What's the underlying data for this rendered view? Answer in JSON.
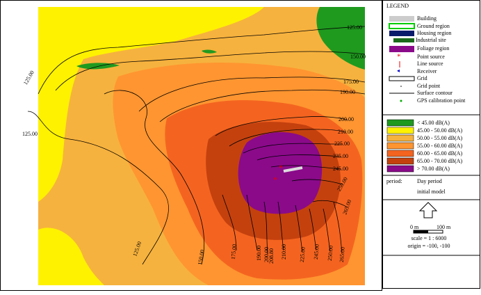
{
  "legend": {
    "title": "LEGEND",
    "items": [
      "Building",
      "Ground region",
      "Housing region",
      "Industrial site",
      "Foliage region",
      "Point source",
      "Line source",
      "Receiver",
      "Grid",
      "Grid point",
      "Surface contour",
      "GPS calibration point"
    ]
  },
  "noise_levels": [
    {
      "label": "< 45.00 dB(A)",
      "color": "#1f9a1f"
    },
    {
      "label": "45.00 - 50.00 dB(A)",
      "color": "#fff200"
    },
    {
      "label": "50.00 - 55.00 dB(A)",
      "color": "#f6b23e"
    },
    {
      "label": "55.00 - 60.00 dB(A)",
      "color": "#ff9530"
    },
    {
      "label": "60.00 - 65.00 dB(A)",
      "color": "#f46420"
    },
    {
      "label": "65.00 - 70.00 dB(A)",
      "color": "#c4410e"
    },
    {
      "label": "> 70.00 dB(A)",
      "color": "#8a0a8a"
    }
  ],
  "period": {
    "label": "period:",
    "value": "Day period",
    "model": "initial model"
  },
  "scale": {
    "min_label": "0 m",
    "max_label": "100 m",
    "ratio": "scale = 1 : 6000",
    "origin": "origin = -100, -100"
  },
  "contour_labels": [
    "125.00",
    "150.00",
    "175.00",
    "190.00",
    "200.00",
    "210.00",
    "225.00",
    "235.00",
    "245.00",
    "250.00",
    "265.00",
    "125.00",
    "125.00",
    "125.00",
    "150.00",
    "175.00",
    "190.00",
    "200.00",
    "208.80",
    "210.00",
    "225.00",
    "245.00",
    "250.00",
    "265.00"
  ]
}
